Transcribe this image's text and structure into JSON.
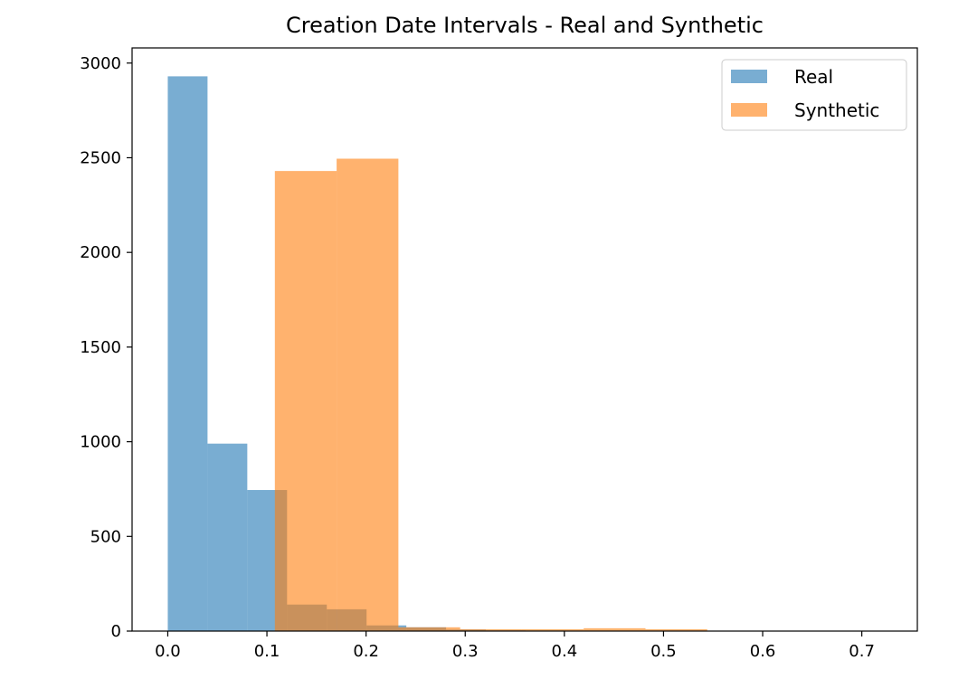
{
  "chart_data": {
    "type": "bar",
    "title": "Creation Date Intervals - Real and Synthetic",
    "xlabel": "",
    "ylabel": "",
    "xlim": [
      -0.036,
      0.756
    ],
    "ylim": [
      0,
      3080
    ],
    "xticks": [
      0.0,
      0.1,
      0.2,
      0.3,
      0.4,
      0.5,
      0.6,
      0.7
    ],
    "xtick_labels": [
      "0.0",
      "0.1",
      "0.2",
      "0.3",
      "0.4",
      "0.5",
      "0.6",
      "0.7"
    ],
    "yticks": [
      0,
      500,
      1000,
      1500,
      2000,
      2500,
      3000
    ],
    "ytick_labels": [
      "0",
      "500",
      "1000",
      "1500",
      "2000",
      "2500",
      "3000"
    ],
    "grid": false,
    "legend_position": "upper-right",
    "series": [
      {
        "name": "Real",
        "color": "#1f77b4",
        "opacity": 0.6,
        "bin_edges": [
          0.0,
          0.0401,
          0.0802,
          0.1203,
          0.1604,
          0.2005,
          0.2406,
          0.2807,
          0.3208,
          0.3609,
          0.401,
          0.4411,
          0.4812,
          0.5213,
          0.5614,
          0.6015,
          0.6416,
          0.6817,
          0.7218
        ],
        "counts": [
          2930,
          990,
          745,
          140,
          115,
          30,
          20,
          8,
          4,
          3,
          2,
          2,
          1,
          1,
          1,
          1,
          0,
          1
        ]
      },
      {
        "name": "Synthetic",
        "color": "#ff7f0e",
        "opacity": 0.6,
        "bin_edges": [
          0.108,
          0.1703,
          0.2326,
          0.2949,
          0.3572,
          0.4195,
          0.4818,
          0.5441
        ],
        "counts": [
          2430,
          2495,
          20,
          10,
          10,
          15,
          10
        ]
      }
    ]
  }
}
